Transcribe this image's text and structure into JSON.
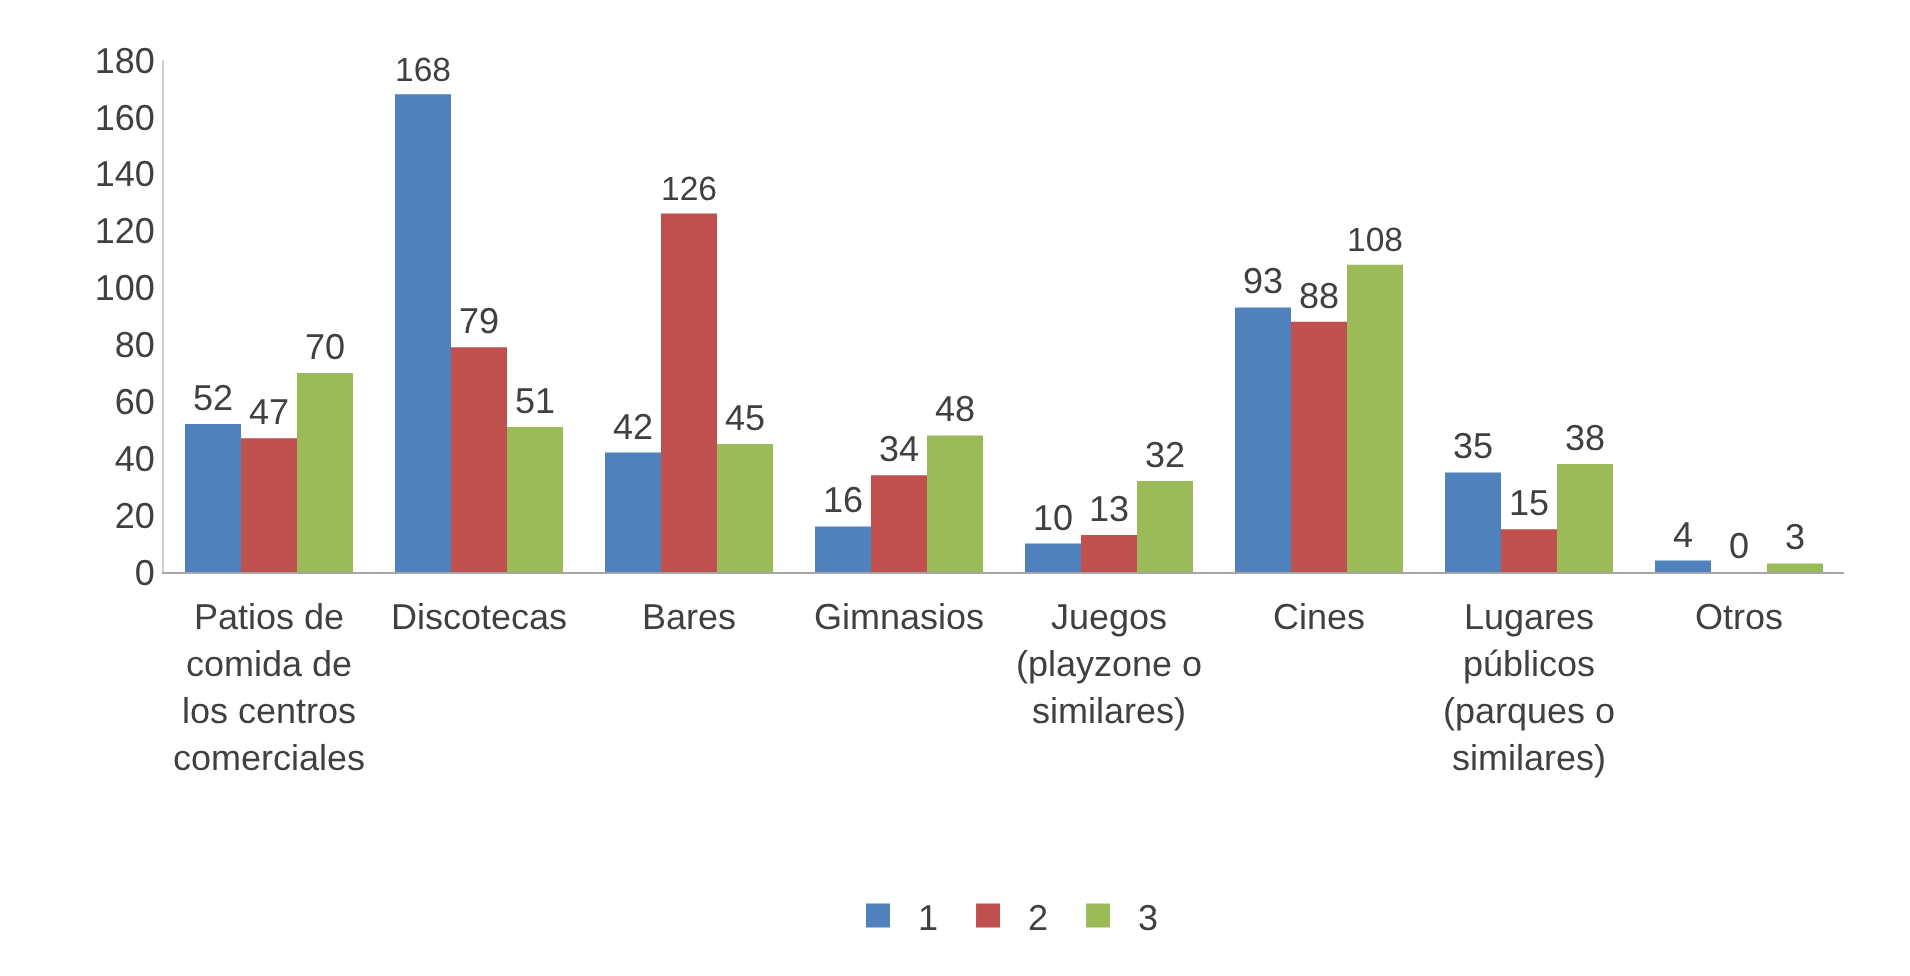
{
  "chart_data": {
    "type": "bar",
    "categories": [
      "Patios de comida de los centros comerciales",
      "Discotecas",
      "Bares",
      "Gimnasios",
      "Juegos (playzone o similares)",
      "Cines",
      "Lugares públicos (parques o similares)",
      "Otros"
    ],
    "series": [
      {
        "name": "1",
        "color": "#4f81bd",
        "values": [
          52,
          168,
          42,
          16,
          10,
          93,
          35,
          4
        ]
      },
      {
        "name": "2",
        "color": "#c0504d",
        "values": [
          47,
          79,
          126,
          34,
          13,
          88,
          15,
          0
        ]
      },
      {
        "name": "3",
        "color": "#9bbb59",
        "values": [
          70,
          51,
          45,
          48,
          32,
          108,
          38,
          3
        ]
      }
    ],
    "ylim": [
      0,
      180
    ],
    "yticks": [
      0,
      20,
      40,
      60,
      80,
      100,
      120,
      140,
      160,
      180
    ],
    "data_labels": true,
    "legend": "bottom"
  }
}
